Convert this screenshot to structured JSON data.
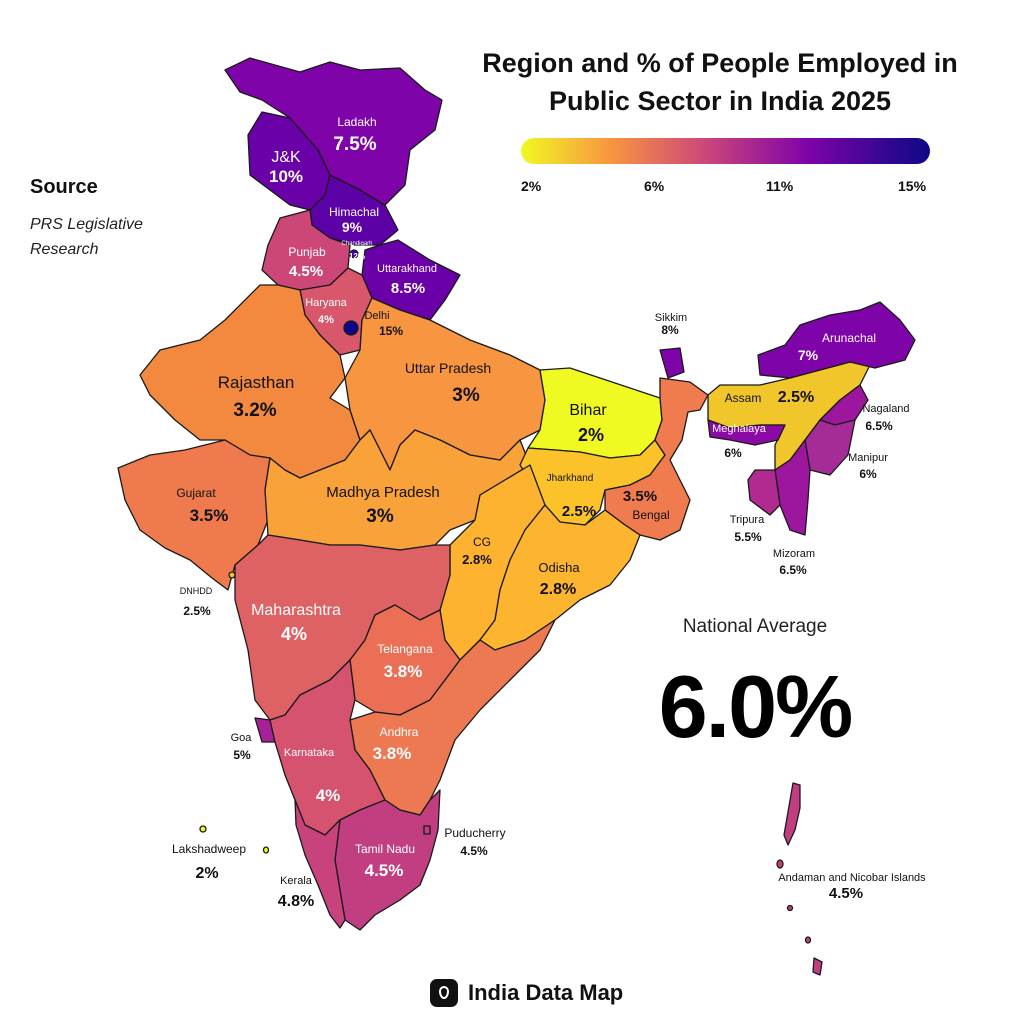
{
  "title": "Region and % of People Employed in Public Sector in India 2025",
  "source": {
    "heading": "Source",
    "text": "PRS Legislative Research"
  },
  "scale": {
    "ticks": [
      "2%",
      "6%",
      "11%",
      "15%"
    ]
  },
  "national": {
    "label": "National Average",
    "value": "6.0%"
  },
  "brand": "India Data Map",
  "colors": {
    "low": "#f0f921",
    "mid1": "#f89540",
    "mid2": "#cc4778",
    "mid3": "#7e03a8",
    "high": "#0d0887"
  },
  "regions": [
    {
      "id": "ladakh",
      "name": "Ladakh",
      "value": "7.5%"
    },
    {
      "id": "jk",
      "name": "J&K",
      "value": "10%"
    },
    {
      "id": "himachal",
      "name": "Himachal",
      "value": "9%"
    },
    {
      "id": "chandigarh",
      "name": "Chandigarh",
      "value": "12%"
    },
    {
      "id": "punjab",
      "name": "Punjab",
      "value": "4.5%"
    },
    {
      "id": "uttarakhand",
      "name": "Uttarakhand",
      "value": "8.5%"
    },
    {
      "id": "haryana",
      "name": "Haryana",
      "value": "4%"
    },
    {
      "id": "delhi",
      "name": "Delhi",
      "value": "15%"
    },
    {
      "id": "rajasthan",
      "name": "Rajasthan",
      "value": "3.2%"
    },
    {
      "id": "up",
      "name": "Uttar Pradesh",
      "value": "3%"
    },
    {
      "id": "bihar",
      "name": "Bihar",
      "value": "2%"
    },
    {
      "id": "sikkim",
      "name": "Sikkim",
      "value": "8%"
    },
    {
      "id": "arunachal",
      "name": "Arunachal",
      "value": "7%"
    },
    {
      "id": "assam",
      "name": "Assam",
      "value": "2.5%"
    },
    {
      "id": "nagaland",
      "name": "Nagaland",
      "value": "6.5%"
    },
    {
      "id": "meghalaya",
      "name": "Meghalaya",
      "value": "6%"
    },
    {
      "id": "manipur",
      "name": "Manipur",
      "value": "6%"
    },
    {
      "id": "tripura",
      "name": "Tripura",
      "value": "5.5%"
    },
    {
      "id": "mizoram",
      "name": "Mizoram",
      "value": "6.5%"
    },
    {
      "id": "jharkhand",
      "name": "Jharkhand",
      "value": "2.5%"
    },
    {
      "id": "bengal",
      "name": "Bengal",
      "value": "3.5%"
    },
    {
      "id": "gujarat",
      "name": "Gujarat",
      "value": "3.5%"
    },
    {
      "id": "mp",
      "name": "Madhya Pradesh",
      "value": "3%"
    },
    {
      "id": "cg",
      "name": "CG",
      "value": "2.8%"
    },
    {
      "id": "odisha",
      "name": "Odisha",
      "value": "2.8%"
    },
    {
      "id": "dnhdd",
      "name": "DNHDD",
      "value": "2.5%"
    },
    {
      "id": "maharashtra",
      "name": "Maharashtra",
      "value": "4%"
    },
    {
      "id": "telangana",
      "name": "Telangana",
      "value": "3.8%"
    },
    {
      "id": "goa",
      "name": "Goa",
      "value": "5%"
    },
    {
      "id": "andhra",
      "name": "Andhra",
      "value": "3.8%"
    },
    {
      "id": "karnataka",
      "name": "Karnataka",
      "value": "4%"
    },
    {
      "id": "lakshadweep",
      "name": "Lakshadweep",
      "value": "2%"
    },
    {
      "id": "puducherry",
      "name": "Puducherry",
      "value": "4.5%"
    },
    {
      "id": "tamilnadu",
      "name": "Tamil Nadu",
      "value": "4.5%"
    },
    {
      "id": "kerala",
      "name": "Kerala",
      "value": "4.8%"
    },
    {
      "id": "andaman",
      "name": "Andaman and Nicobar Islands",
      "value": "4.5%"
    }
  ]
}
